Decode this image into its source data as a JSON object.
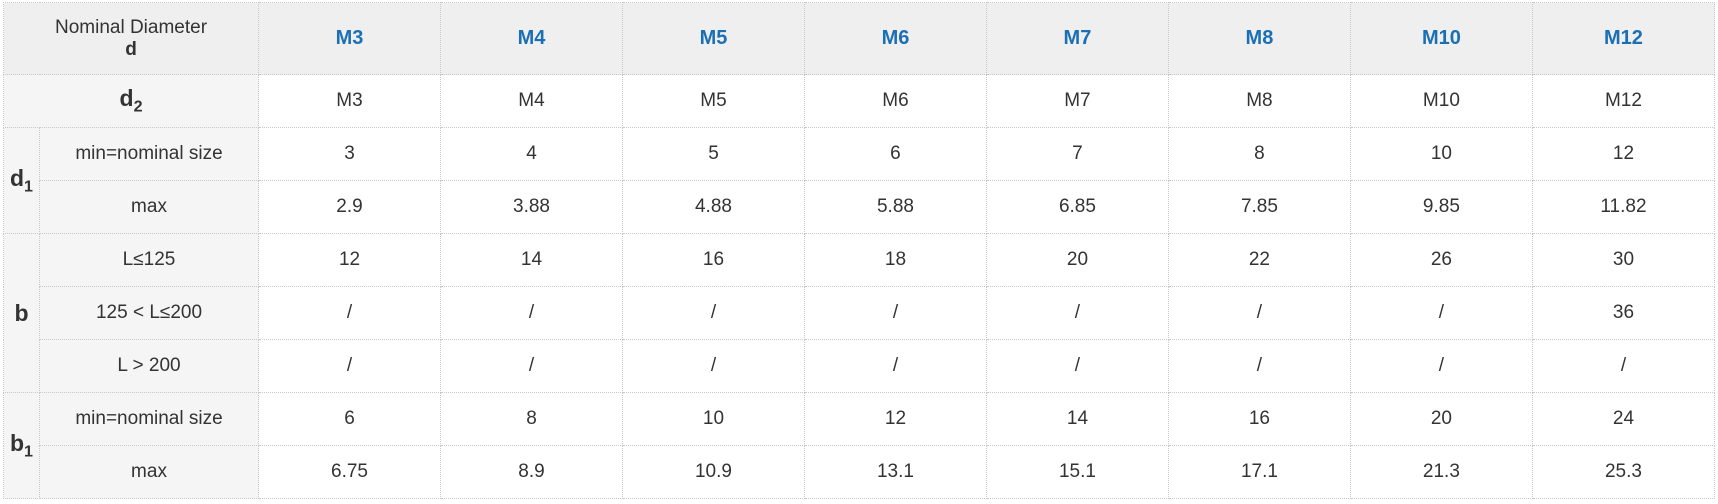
{
  "header": {
    "corner": {
      "title": "Nominal Diameter",
      "symbol": "d"
    },
    "columns": [
      "M3",
      "M4",
      "M5",
      "M6",
      "M7",
      "M8",
      "M10",
      "M12"
    ]
  },
  "d2_row": {
    "label": {
      "symbol": "d",
      "sub": "2"
    },
    "values": [
      "M3",
      "M4",
      "M5",
      "M6",
      "M7",
      "M8",
      "M10",
      "M12"
    ]
  },
  "groups": [
    {
      "label": {
        "symbol": "d",
        "sub": "1"
      },
      "rows": [
        {
          "label": "min=nominal size",
          "values": [
            3,
            4,
            5,
            6,
            7,
            8,
            10,
            12
          ]
        },
        {
          "label": "max",
          "values": [
            2.9,
            3.88,
            4.88,
            5.88,
            6.85,
            7.85,
            9.85,
            11.82
          ]
        }
      ]
    },
    {
      "label": {
        "symbol": "b"
      },
      "rows": [
        {
          "label": "L≤125",
          "values": [
            12,
            14,
            16,
            18,
            20,
            22,
            26,
            30
          ]
        },
        {
          "label": "125 < L≤200",
          "values": [
            "/",
            "/",
            "/",
            "/",
            "/",
            "/",
            "/",
            36
          ]
        },
        {
          "label": "L > 200",
          "values": [
            "/",
            "/",
            "/",
            "/",
            "/",
            "/",
            "/",
            "/"
          ]
        }
      ]
    },
    {
      "label": {
        "symbol": "b",
        "sub": "1"
      },
      "rows": [
        {
          "label": "min=nominal size",
          "values": [
            6,
            8,
            10,
            12,
            14,
            16,
            20,
            24
          ]
        },
        {
          "label": "max",
          "values": [
            6.75,
            8.9,
            10.9,
            13.1,
            15.1,
            17.1,
            21.3,
            25.3
          ]
        }
      ]
    }
  ]
}
